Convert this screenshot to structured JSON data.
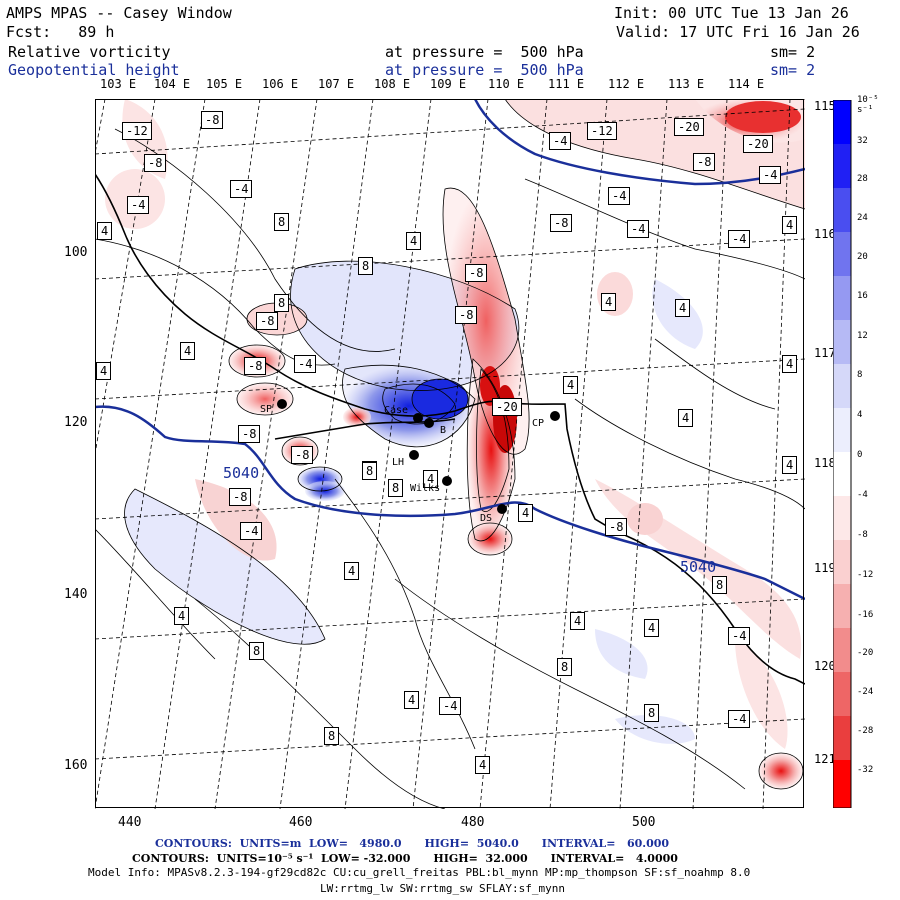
{
  "header": {
    "title": "AMPS MPAS -- Casey Window",
    "init": "Init: 00 UTC Tue 13 Jan 26",
    "fcst": "Fcst:   89 h",
    "valid": "Valid: 17 UTC Fri 16 Jan 26",
    "field1": {
      "name": "Relative vorticity",
      "pressure": "at pressure =  500 hPa",
      "sm": "sm= 2"
    },
    "field2": {
      "name": "Geopotential height",
      "pressure": "at pressure =  500 hPa",
      "sm": "sm= 2"
    }
  },
  "axes": {
    "lon_top": [
      "103 E",
      "104 E",
      "105 E",
      "106 E",
      "107 E",
      "108 E",
      "109 E",
      "110 E",
      "111 E",
      "112 E",
      "113 E",
      "114 E"
    ],
    "lon_right": [
      "115 E",
      "116 E",
      "117 E",
      "118 E",
      "119 E",
      "120 E",
      "121 E"
    ],
    "y_ticks": [
      "100",
      "120",
      "140",
      "160"
    ],
    "x_ticks": [
      "440",
      "460",
      "480",
      "500"
    ]
  },
  "colorbar": {
    "unit": "10⁻⁵ s⁻¹",
    "levels": [
      "32",
      "28",
      "24",
      "20",
      "16",
      "12",
      "8",
      "4",
      "0",
      "-4",
      "-8",
      "-12",
      "-16",
      "-20",
      "-24",
      "-28",
      "-32"
    ]
  },
  "stations": [
    "SP",
    "Case",
    "B",
    "LH",
    "Wilks",
    "DS",
    "CP"
  ],
  "contour_labels": {
    "geopotential": [
      "5040",
      "5040"
    ],
    "vorticity": [
      "-12",
      "-8",
      "-8",
      "-4",
      "-4",
      "4",
      "8",
      "-4",
      "-12",
      "-20",
      "-20",
      "-8",
      "-4",
      "-4",
      "-4",
      "-8",
      "-4",
      "4",
      "4",
      "4",
      "4",
      "8",
      "-8",
      "-8",
      "8",
      "4",
      "-8",
      "4",
      "-8",
      "-4",
      "4",
      "4",
      "4",
      "4",
      "-8",
      "-8",
      "-8",
      "-20",
      "8",
      "8",
      "4",
      "-4",
      "8",
      "-8",
      "-4",
      "4",
      "8",
      "4",
      "4",
      "-4",
      "8",
      "4",
      "-4",
      "4",
      "8",
      "-4",
      "4",
      "8",
      "4",
      "8"
    ]
  },
  "footer": {
    "line1_label": "CONTOURS:",
    "line1_units": "UNITS=m",
    "line1_low": "LOW=   4980.0",
    "line1_high": "HIGH=  5040.0",
    "line1_interval": "INTERVAL=   60.000",
    "line2_label": "CONTOURS:",
    "line2_units": "UNITS=10⁻⁵ s⁻¹",
    "line2_low": "LOW= -32.000",
    "line2_high": "HIGH=  32.000",
    "line2_interval": "INTERVAL=   4.0000",
    "model_info": "Model Info: MPASv8.2.3-194-gf29cd82c CU:cu_grell_freitas PBL:bl_mynn MP:mp_thompson SF:sf_noahmp 8.0",
    "model_info2": "LW:rrtmg_lw SW:rrtmg_sw SFLAY:sf_mynn"
  },
  "colors": {
    "cyclonic": "#0000ff",
    "anticyclonic": "#ff0000",
    "height_contour": "#1a2f9a"
  }
}
